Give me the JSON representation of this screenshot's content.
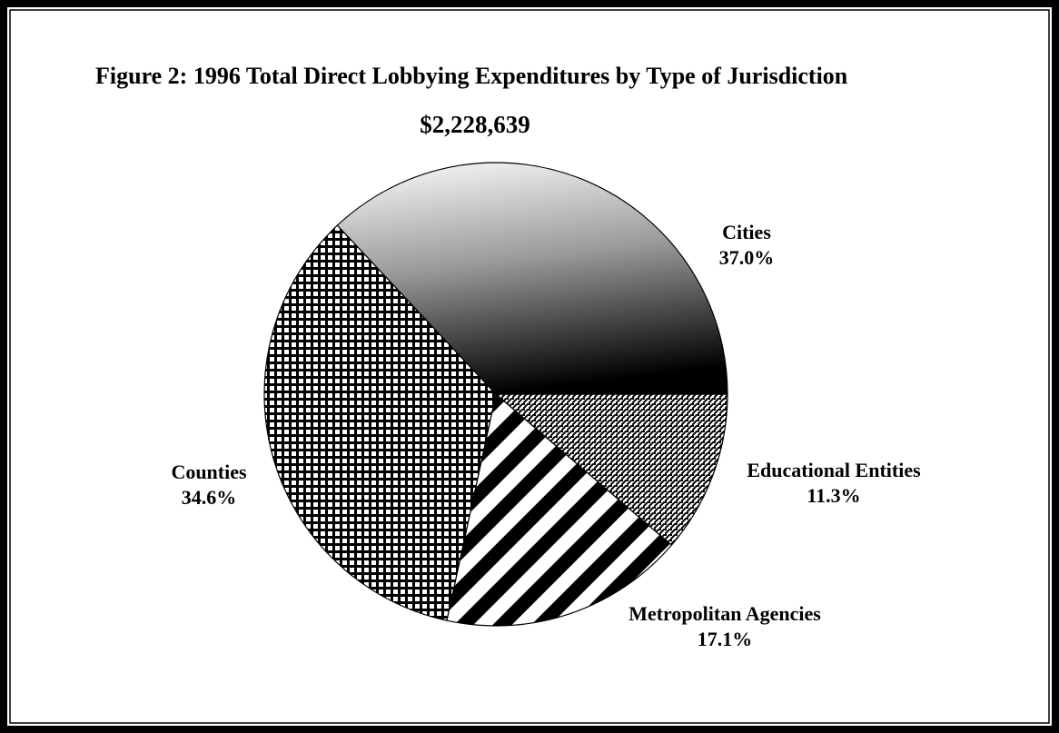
{
  "chart_data": {
    "type": "pie",
    "title": "Figure 2: 1996 Total Direct Lobbying Expenditures by Type of Jurisdiction",
    "subtitle": "$2,228,639",
    "categories": [
      "Educational Entities",
      "Metropolitan Agencies",
      "Counties",
      "Cities"
    ],
    "values": [
      11.3,
      17.1,
      34.6,
      37.0
    ],
    "value_labels": [
      "11.3%",
      "17.1%",
      "34.6%",
      "37.0%"
    ]
  }
}
